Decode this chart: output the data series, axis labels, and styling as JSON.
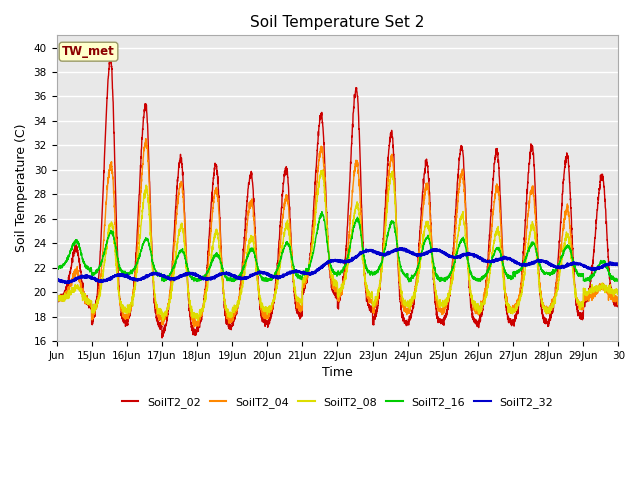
{
  "title": "Soil Temperature Set 2",
  "xlabel": "Time",
  "ylabel": "Soil Temperature (C)",
  "ylim": [
    16,
    41
  ],
  "yticks": [
    16,
    18,
    20,
    22,
    24,
    26,
    28,
    30,
    32,
    34,
    36,
    38,
    40
  ],
  "colors": {
    "SoilT2_02": "#cc0000",
    "SoilT2_04": "#ff8800",
    "SoilT2_08": "#dddd00",
    "SoilT2_16": "#00cc00",
    "SoilT2_32": "#0000cc"
  },
  "legend_labels": [
    "SoilT2_02",
    "SoilT2_04",
    "SoilT2_08",
    "SoilT2_16",
    "SoilT2_32"
  ],
  "annotation_text": "TW_met",
  "annotation_color": "#8b0000",
  "annotation_bg": "#ffffcc",
  "bg_color": "#e8e8e8",
  "xtick_labels": [
    "Jun",
    "15Jun",
    "16Jun",
    "17Jun",
    "18Jun",
    "19Jun",
    "20Jun",
    "21Jun",
    "22Jun",
    "23Jun",
    "24Jun",
    "25Jun",
    "26Jun",
    "27Jun",
    "28Jun",
    "29Jun",
    "30"
  ]
}
